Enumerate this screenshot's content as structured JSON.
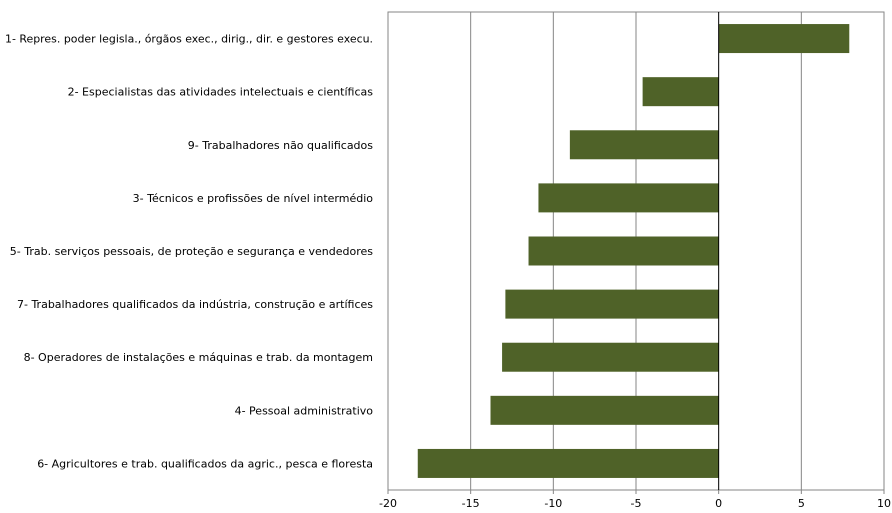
{
  "chart_data": {
    "type": "bar",
    "orientation": "horizontal",
    "categories": [
      "1- Repres. poder legisla., órgãos exec., dirig., dir. e gestores execu.",
      "2- Especialistas das atividades intelectuais e científicas",
      "9- Trabalhadores não qualificados",
      "3- Técnicos e profissões de nível intermédio",
      "5- Trab. serviços pessoais, de proteção e segurança e vendedores",
      "7- Trabalhadores qualificados da indústria, construção e artífices",
      "8- Operadores de instalações e máquinas e trab. da montagem",
      "4- Pessoal administrativo",
      "6- Agricultores e trab. qualificados da agric.,  pesca e floresta"
    ],
    "values": [
      7.9,
      -4.6,
      -9.0,
      -10.9,
      -11.5,
      -12.9,
      -13.1,
      -13.8,
      -18.2
    ],
    "xlim": [
      -20,
      10
    ],
    "xticks": [
      "-20",
      "-15",
      "-10",
      "-5",
      "0",
      "5",
      "10"
    ],
    "grid": "vertical",
    "bar_color": "#4f6228",
    "title": "",
    "xlabel": "",
    "ylabel": ""
  }
}
